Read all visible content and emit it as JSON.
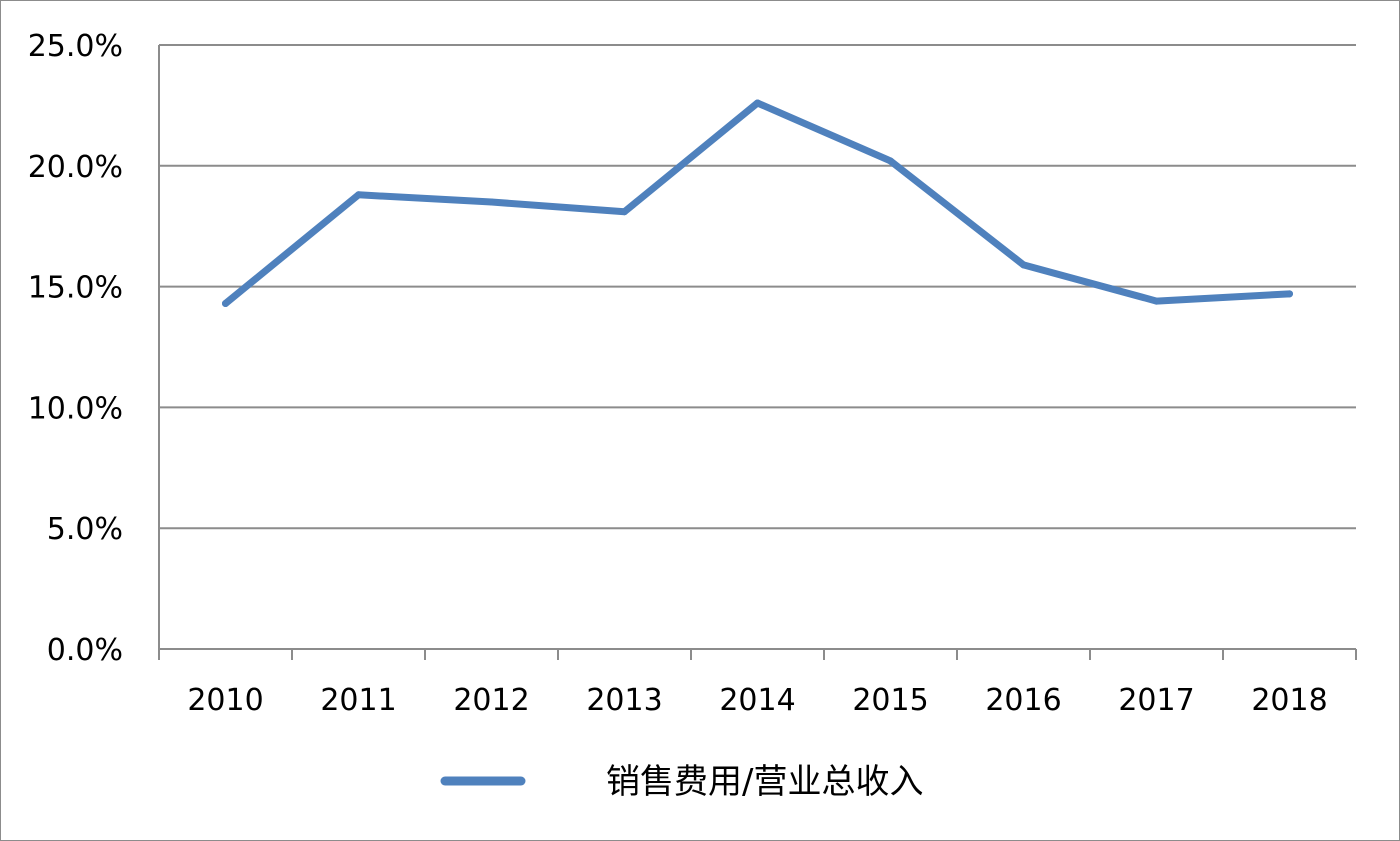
{
  "chart_data": {
    "type": "line",
    "title": "",
    "xlabel": "",
    "ylabel": "",
    "categories": [
      "2010",
      "2011",
      "2012",
      "2013",
      "2014",
      "2015",
      "2016",
      "2017",
      "2018"
    ],
    "ylim": [
      0,
      25
    ],
    "y_ticks": [
      0,
      5,
      10,
      15,
      20,
      25
    ],
    "y_tick_labels": [
      "0.0%",
      "5.0%",
      "10.0%",
      "15.0%",
      "20.0%",
      "25.0%"
    ],
    "grid": "horizontal",
    "legend_position": "bottom",
    "series": [
      {
        "name": "销售费用/营业总收入",
        "color": "#4f81bd",
        "values": [
          14.3,
          18.8,
          18.5,
          18.1,
          22.6,
          20.2,
          15.9,
          14.4,
          14.7
        ]
      }
    ]
  }
}
